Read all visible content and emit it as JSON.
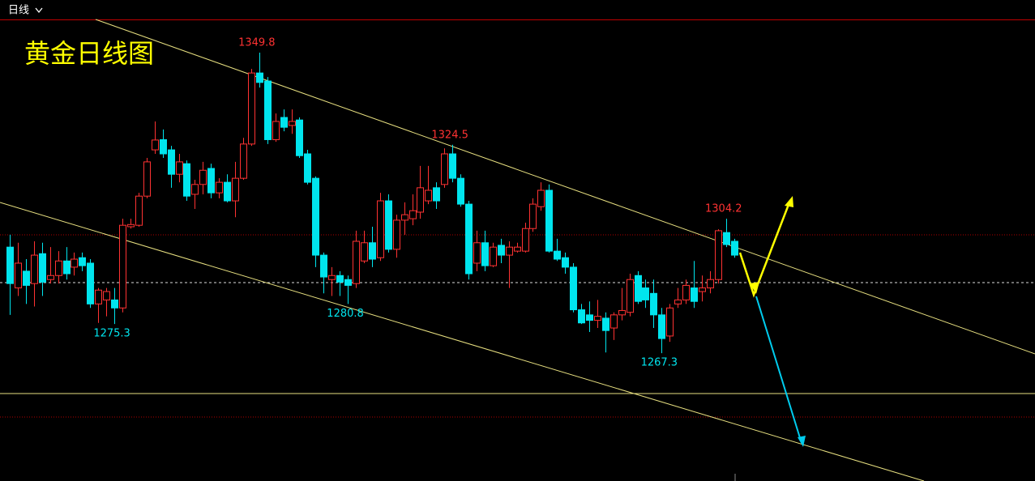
{
  "header": {
    "period": "日线"
  },
  "chart_data": {
    "type": "candlestick",
    "title": "黄金日线图",
    "up_color": "#ff3232",
    "down_color": "#00e5ee",
    "ylim": [
      1232.2,
      1358.9
    ],
    "open": [
      1296.4,
      1285.2,
      1289.8,
      1286.4,
      1294.6,
      1287.5,
      1288.6,
      1292.6,
      1290.9,
      1293.5,
      1292.0,
      1280.8,
      1281.9,
      1281.9,
      1279.7,
      1302.0,
      1302.4,
      1310.4,
      1323.1,
      1325.9,
      1323.1,
      1316.4,
      1319.3,
      1310.9,
      1313.6,
      1318.0,
      1311.3,
      1314.2,
      1309.1,
      1315.3,
      1324.7,
      1344.2,
      1342.0,
      1325.9,
      1332.0,
      1329.8,
      1331.3,
      1322.0,
      1315.3,
      1294.2,
      1287.5,
      1288.6,
      1287.5,
      1286.4,
      1292.6,
      1297.6,
      1293.5,
      1309.1,
      1295.8,
      1303.8,
      1304.2,
      1306.0,
      1309.1,
      1312.7,
      1313.6,
      1322.0,
      1315.3,
      1308.2,
      1292.0,
      1297.6,
      1291.3,
      1296.9,
      1294.2,
      1295.3,
      1295.3,
      1301.5,
      1307.5,
      1312.0,
      1295.3,
      1293.5,
      1290.9,
      1279.2,
      1277.8,
      1276.3,
      1276.9,
      1274.2,
      1277.8,
      1278.5,
      1288.6,
      1285.2,
      1283.7,
      1277.8,
      1272.0,
      1280.8,
      1281.9,
      1285.2,
      1284.2,
      1285.2,
      1287.5,
      1300.4,
      1298.0
    ],
    "high": [
      1299.8,
      1297.6,
      1293.1,
      1298.0,
      1297.6,
      1296.4,
      1295.3,
      1296.4,
      1294.9,
      1294.9,
      1293.1,
      1285.2,
      1285.2,
      1285.2,
      1304.2,
      1304.2,
      1311.3,
      1320.9,
      1330.9,
      1328.7,
      1324.2,
      1322.0,
      1320.2,
      1314.9,
      1319.8,
      1319.3,
      1315.3,
      1316.4,
      1319.8,
      1326.4,
      1345.3,
      1349.8,
      1343.1,
      1333.1,
      1334.2,
      1334.2,
      1332.0,
      1323.1,
      1315.8,
      1294.9,
      1290.9,
      1289.8,
      1288.6,
      1300.9,
      1300.9,
      1302.0,
      1311.3,
      1310.9,
      1305.3,
      1308.7,
      1310.9,
      1318.7,
      1318.7,
      1314.2,
      1323.5,
      1324.5,
      1316.4,
      1309.1,
      1300.9,
      1300.9,
      1297.6,
      1298.7,
      1298.0,
      1297.6,
      1303.1,
      1309.8,
      1314.2,
      1313.6,
      1298.7,
      1294.9,
      1292.0,
      1280.8,
      1281.5,
      1281.9,
      1278.5,
      1278.5,
      1285.2,
      1289.1,
      1289.8,
      1287.5,
      1287.5,
      1279.7,
      1280.8,
      1285.2,
      1287.5,
      1292.6,
      1288.6,
      1289.8,
      1301.3,
      1304.2,
      1298.7
    ],
    "low": [
      1277.8,
      1283.0,
      1280.8,
      1280.1,
      1283.0,
      1286.4,
      1286.4,
      1287.5,
      1288.6,
      1289.8,
      1279.7,
      1275.6,
      1277.4,
      1275.3,
      1278.5,
      1301.5,
      1302.0,
      1309.8,
      1322.0,
      1320.9,
      1312.7,
      1314.2,
      1309.1,
      1306.9,
      1310.9,
      1309.8,
      1309.8,
      1308.7,
      1304.6,
      1314.9,
      1324.2,
      1340.2,
      1324.7,
      1325.3,
      1328.2,
      1327.5,
      1320.9,
      1313.6,
      1290.9,
      1283.7,
      1283.0,
      1283.0,
      1280.8,
      1285.2,
      1292.0,
      1290.9,
      1292.6,
      1294.9,
      1293.5,
      1299.8,
      1302.4,
      1304.2,
      1308.2,
      1306.9,
      1312.7,
      1314.2,
      1307.5,
      1287.5,
      1289.8,
      1289.8,
      1290.9,
      1292.0,
      1285.2,
      1294.9,
      1294.9,
      1300.6,
      1306.4,
      1294.9,
      1292.6,
      1289.1,
      1278.5,
      1275.3,
      1273.1,
      1274.2,
      1267.5,
      1270.9,
      1276.3,
      1277.4,
      1280.8,
      1279.7,
      1274.2,
      1267.3,
      1270.4,
      1279.7,
      1280.8,
      1279.7,
      1281.5,
      1283.7,
      1286.4,
      1296.4,
      1293.5
    ],
    "close": [
      1286.4,
      1292.0,
      1285.9,
      1294.2,
      1286.8,
      1288.6,
      1292.6,
      1289.1,
      1293.1,
      1291.3,
      1280.8,
      1284.6,
      1284.2,
      1279.7,
      1302.4,
      1302.6,
      1310.4,
      1319.8,
      1325.8,
      1322.0,
      1316.4,
      1319.8,
      1310.4,
      1313.6,
      1317.5,
      1311.3,
      1314.2,
      1309.1,
      1315.3,
      1324.7,
      1344.2,
      1341.6,
      1325.9,
      1330.9,
      1329.3,
      1330.9,
      1321.5,
      1314.2,
      1294.2,
      1288.2,
      1288.6,
      1286.8,
      1285.9,
      1298.0,
      1297.6,
      1293.1,
      1309.1,
      1295.8,
      1303.8,
      1305.3,
      1306.4,
      1312.7,
      1312.0,
      1309.1,
      1322.0,
      1315.3,
      1308.2,
      1289.1,
      1297.6,
      1291.3,
      1296.4,
      1294.2,
      1296.4,
      1296.4,
      1301.5,
      1308.2,
      1312.0,
      1295.3,
      1293.1,
      1290.9,
      1279.2,
      1275.6,
      1276.3,
      1277.4,
      1273.5,
      1277.8,
      1279.0,
      1287.5,
      1281.5,
      1281.9,
      1277.8,
      1271.3,
      1279.7,
      1281.9,
      1285.9,
      1281.5,
      1285.2,
      1287.5,
      1300.9,
      1297.1,
      1294.2
    ]
  }
}
